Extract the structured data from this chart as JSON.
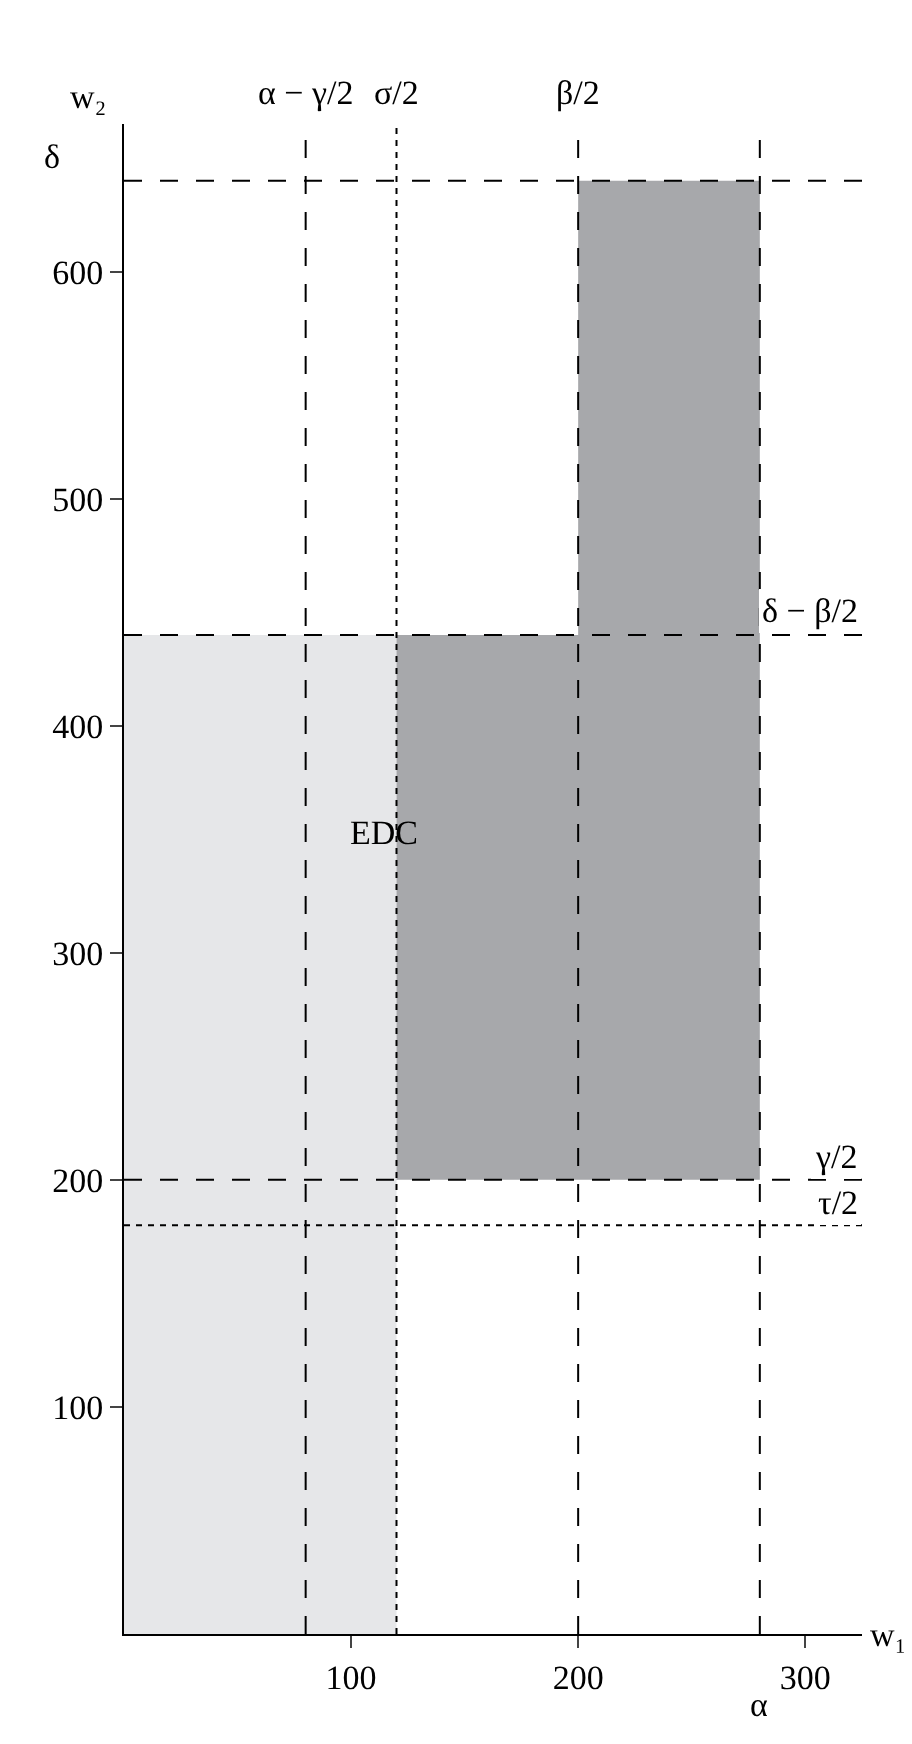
{
  "chart_data": {
    "type": "area",
    "xlabel": "w₁",
    "ylabel": "w₂",
    "xlim": [
      0,
      325
    ],
    "ylim": [
      0,
      665
    ],
    "xticks": [
      100,
      200,
      300
    ],
    "yticks": [
      100,
      200,
      300,
      400,
      500,
      600
    ],
    "grid": false,
    "series": [
      {
        "color": "#e6e7e9",
        "x": [
          0,
          0,
          120,
          120,
          0
        ],
        "values": [
          0,
          440,
          440,
          0,
          0
        ]
      },
      {
        "color": "#a7a8ab",
        "x": [
          120,
          120,
          200,
          200,
          280,
          280,
          120
        ],
        "values": [
          200,
          440,
          440,
          640,
          640,
          200,
          200
        ]
      }
    ],
    "ref_lines": [
      {
        "axis": "x",
        "value": 80,
        "label": "α − γ/2",
        "line_style": "dashed",
        "color": "#000000"
      },
      {
        "axis": "x",
        "value": 120,
        "label": "σ/2",
        "line_style": "dotted",
        "color": "#000000"
      },
      {
        "axis": "x",
        "value": 200,
        "label": "β/2",
        "line_style": "dashed",
        "color": "#000000"
      },
      {
        "axis": "x",
        "value": 280,
        "label": "α",
        "line_style": "dashed",
        "color": "#000000"
      },
      {
        "axis": "y",
        "value": 640,
        "label": "δ",
        "line_style": "dashed",
        "color": "#000000"
      },
      {
        "axis": "y",
        "value": 440,
        "label": "δ − β/2",
        "line_style": "dashed",
        "color": "#000000"
      },
      {
        "axis": "y",
        "value": 200,
        "label": "γ/2",
        "line_style": "dashed",
        "color": "#000000"
      },
      {
        "axis": "y",
        "value": 180,
        "label": "τ/2",
        "line_style": "dotted",
        "color": "#000000"
      }
    ],
    "annotations": [
      "EDC"
    ]
  }
}
